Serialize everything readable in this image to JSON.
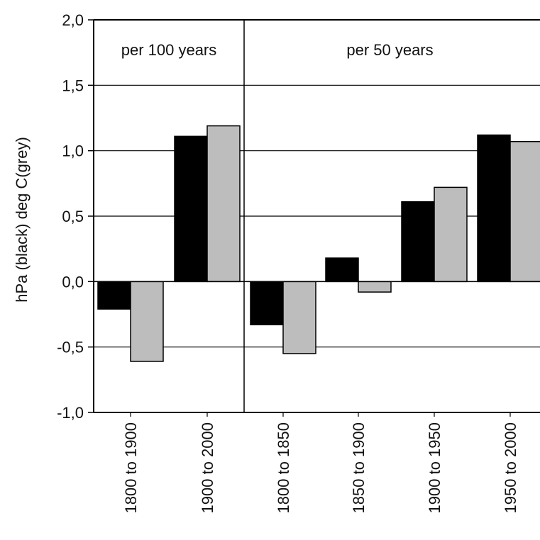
{
  "chart_data": {
    "type": "bar",
    "ylabel": "hPa (black)  deg C(grey)",
    "ylim": [
      -1.0,
      2.0
    ],
    "yticks": [
      -1.0,
      -0.5,
      0.0,
      0.5,
      1.0,
      1.5,
      2.0
    ],
    "ytick_labels": [
      "-1,0",
      "-0,5",
      "0,0",
      "0,5",
      "1,0",
      "1,5",
      "2,0"
    ],
    "grid": "horizontal",
    "panels": [
      {
        "label": "per 100 years",
        "categories": [
          "1800 to 1900",
          "1900 to 2000"
        ]
      },
      {
        "label": "per 50 years",
        "categories": [
          "1800 to 1850",
          "1850 to 1900",
          "1900 to 1950",
          "1950 to 2000"
        ]
      }
    ],
    "categories": [
      "1800 to 1900",
      "1900 to 2000",
      "1800 to 1850",
      "1850 to 1900",
      "1900 to 1950",
      "1950 to 2000"
    ],
    "series": [
      {
        "unit": "hPa",
        "color": "#000000",
        "values": [
          -0.21,
          1.11,
          -0.33,
          0.18,
          0.61,
          1.12
        ]
      },
      {
        "unit": "deg C",
        "color": "#bdbdbd",
        "values": [
          -0.61,
          1.19,
          -0.55,
          -0.08,
          0.72,
          1.07
        ]
      }
    ]
  }
}
